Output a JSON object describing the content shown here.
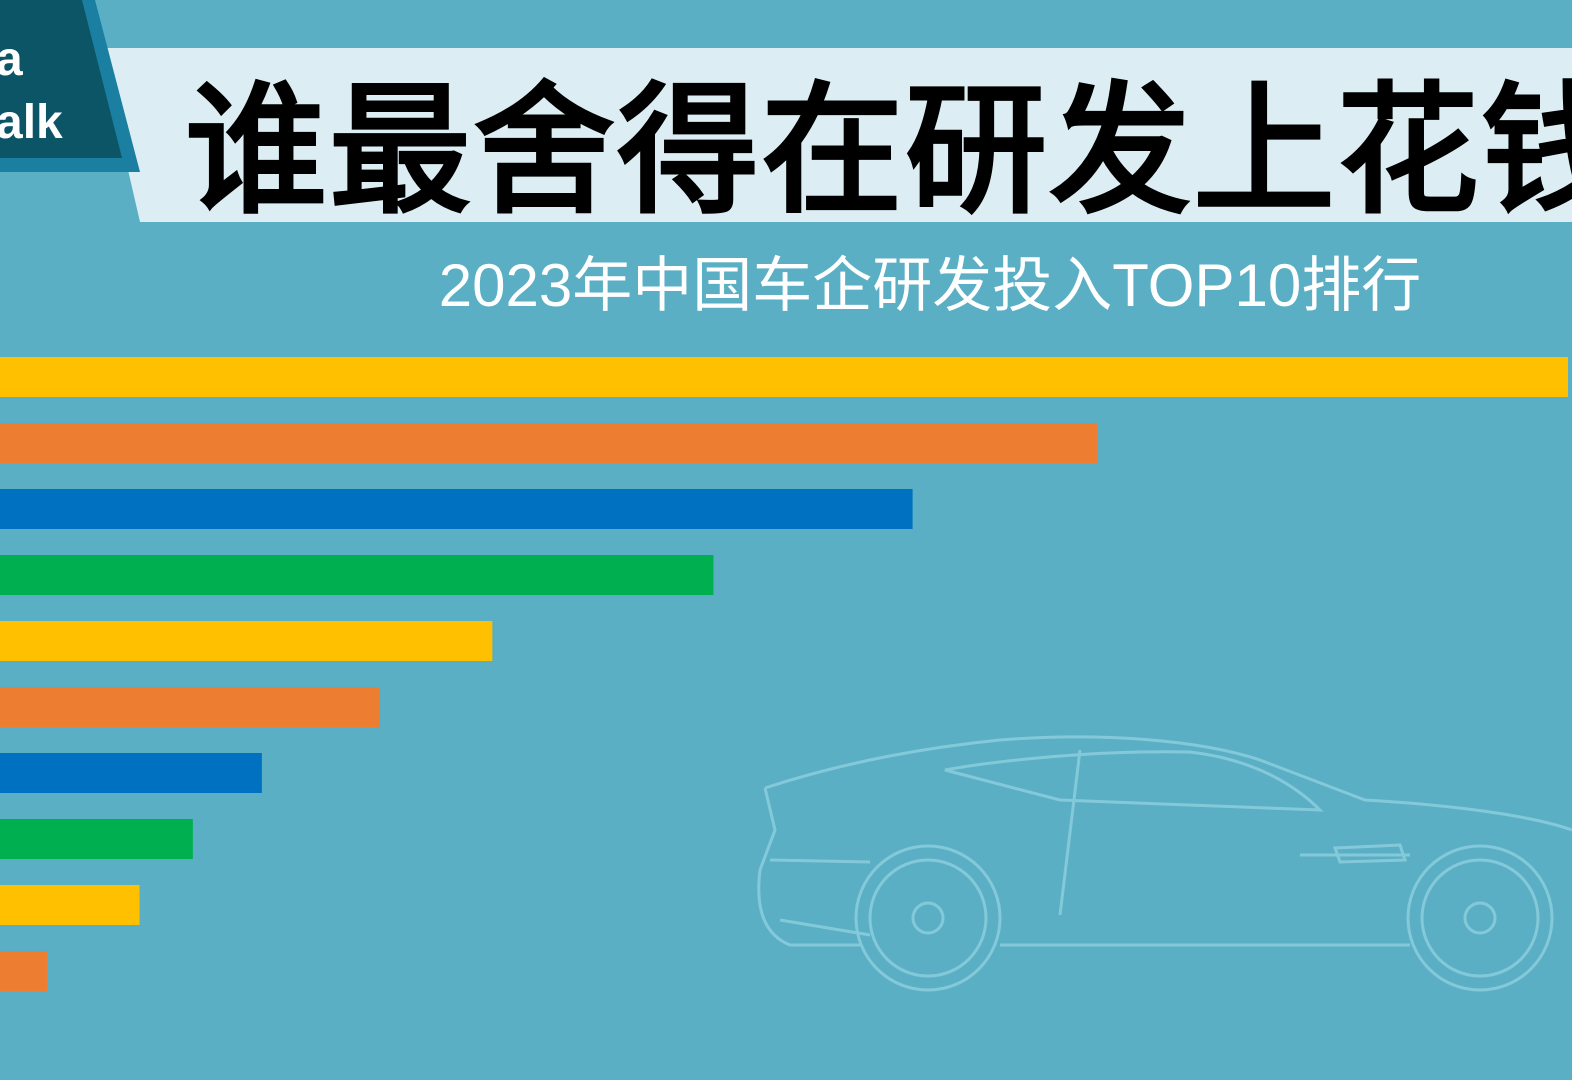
{
  "chart_data": {
    "type": "bar",
    "orientation": "horizontal",
    "title": "谁最舍得在研发上花钱",
    "subtitle": "2023年中国车企研发投入TOP10排行",
    "logo_lines": [
      "a",
      "alk"
    ],
    "values": [
      100,
      70,
      58.2,
      45.5,
      31.4,
      24.2,
      16.7,
      12.3,
      8.9,
      3.0
    ],
    "colors": [
      "#ffc000",
      "#ed7d31",
      "#0070c0",
      "#00b050",
      "#ffc000",
      "#ed7d31",
      "#0070c0",
      "#00b050",
      "#ffc000",
      "#ed7d31"
    ],
    "xlim": [
      0,
      100
    ]
  }
}
